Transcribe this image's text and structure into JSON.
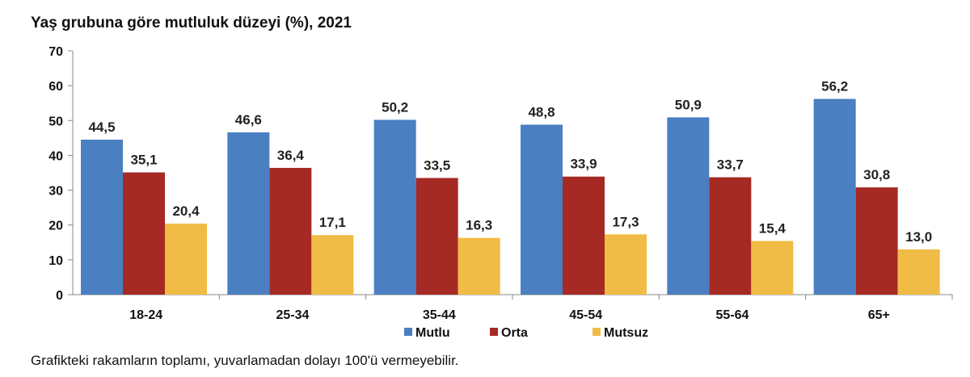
{
  "chart_data": {
    "type": "bar",
    "title": "Yaş grubuna göre mutluluk düzeyi (%), 2021",
    "footnote": "Grafikteki rakamların toplamı, yuvarlamadan dolayı 100'ü vermeyebilir.",
    "categories": [
      "18-24",
      "25-34",
      "35-44",
      "45-54",
      "55-64",
      "65+"
    ],
    "series": [
      {
        "name": "Mutlu",
        "color": "#4a7fc1",
        "values": [
          44.5,
          46.6,
          50.2,
          48.8,
          50.9,
          56.2
        ],
        "labels": [
          "44,5",
          "46,6",
          "50,2",
          "48,8",
          "50,9",
          "56,2"
        ]
      },
      {
        "name": "Orta",
        "color": "#a52a24",
        "values": [
          35.1,
          36.4,
          33.5,
          33.9,
          33.7,
          30.8
        ],
        "labels": [
          "35,1",
          "36,4",
          "33,5",
          "33,9",
          "33,7",
          "30,8"
        ]
      },
      {
        "name": "Mutsuz",
        "color": "#f0bc45",
        "values": [
          20.4,
          17.1,
          16.3,
          17.3,
          15.4,
          13.0
        ],
        "labels": [
          "20,4",
          "17,1",
          "16,3",
          "17,3",
          "15,4",
          "13,0"
        ]
      }
    ],
    "ylim": [
      0,
      70
    ],
    "yticks": [
      0,
      10,
      20,
      30,
      40,
      50,
      60,
      70
    ],
    "xlabel": "",
    "ylabel": "",
    "legend": "bottom-center"
  }
}
